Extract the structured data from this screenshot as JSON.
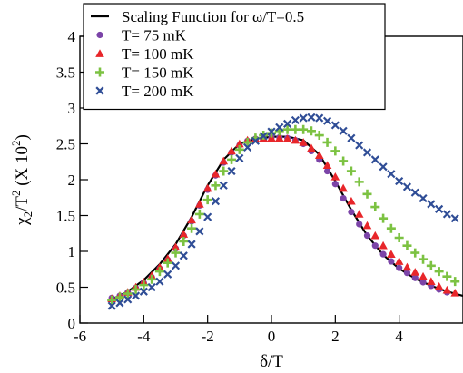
{
  "chart_data": {
    "type": "scatter",
    "title": "",
    "xlabel": "δ/T",
    "ylabel_main": "χ",
    "ylabel_sub": "2",
    "ylabel_mid": "/T",
    "ylabel_sup": "2",
    "ylabel_paren": " (X 10",
    "ylabel_paren_sup": "2",
    "ylabel_close": ")",
    "xlim": [
      -6,
      6
    ],
    "ylim": [
      0,
      4
    ],
    "xticks": [
      -6,
      -4,
      -2,
      0,
      2,
      4
    ],
    "yticks": [
      0,
      0.5,
      1,
      1.5,
      2,
      2.5,
      3,
      3.5,
      4
    ],
    "xtick_labels": [
      "-6",
      "-4",
      "-2",
      "0",
      "2",
      "4"
    ],
    "ytick_labels": [
      "0",
      "0.5",
      "1",
      "1.5",
      "2",
      "2.5",
      "3",
      "3.5",
      "4"
    ],
    "grid": false,
    "legend_position": "top-left",
    "line": {
      "name": "Scaling Function for ω/T=0.5",
      "color": "#000000",
      "x": [
        -5,
        -4.5,
        -4,
        -3.5,
        -3,
        -2.5,
        -2,
        -1.5,
        -1,
        -0.5,
        0,
        0.5,
        1,
        1.5,
        2,
        2.5,
        3,
        3.5,
        4,
        4.5,
        5,
        5.5,
        6
      ],
      "y": [
        0.33,
        0.44,
        0.6,
        0.82,
        1.1,
        1.48,
        1.92,
        2.28,
        2.5,
        2.57,
        2.6,
        2.6,
        2.55,
        2.35,
        1.98,
        1.58,
        1.22,
        0.95,
        0.76,
        0.62,
        0.52,
        0.44,
        0.38
      ]
    },
    "series": [
      {
        "name": "T= 75 mK",
        "marker": "circle",
        "color": "#7b44a8",
        "x": [
          -5,
          -4.75,
          -4.5,
          -4.25,
          -4,
          -3.75,
          -3.5,
          -3.25,
          -3,
          -2.75,
          -2.5,
          -2.25,
          -2,
          -1.75,
          -1.5,
          -1.25,
          -1,
          -0.75,
          -0.5,
          -0.25,
          0,
          0.25,
          0.5,
          0.75,
          1,
          1.25,
          1.5,
          1.75,
          2,
          2.25,
          2.5,
          2.75,
          3,
          3.25,
          3.5,
          3.75,
          4,
          4.25,
          4.5,
          4.75,
          5,
          5.25,
          5.5
        ],
        "y": [
          0.35,
          0.38,
          0.43,
          0.49,
          0.56,
          0.64,
          0.76,
          0.88,
          1.04,
          1.22,
          1.42,
          1.64,
          1.86,
          2.06,
          2.24,
          2.38,
          2.48,
          2.54,
          2.57,
          2.58,
          2.59,
          2.59,
          2.58,
          2.55,
          2.5,
          2.4,
          2.28,
          2.12,
          1.94,
          1.74,
          1.55,
          1.38,
          1.22,
          1.08,
          0.96,
          0.86,
          0.77,
          0.7,
          0.63,
          0.57,
          0.52,
          0.47,
          0.43
        ]
      },
      {
        "name": "T= 100 mK",
        "marker": "triangle",
        "color": "#e8262a",
        "x": [
          -5,
          -4.75,
          -4.5,
          -4.25,
          -4,
          -3.75,
          -3.5,
          -3.25,
          -3,
          -2.75,
          -2.5,
          -2.25,
          -2,
          -1.75,
          -1.5,
          -1.25,
          -1,
          -0.75,
          -0.5,
          -0.25,
          0,
          0.25,
          0.5,
          0.75,
          1,
          1.25,
          1.5,
          1.75,
          2,
          2.25,
          2.5,
          2.75,
          3,
          3.25,
          3.5,
          3.75,
          4,
          4.25,
          4.5,
          4.75,
          5,
          5.25,
          5.5,
          5.75
        ],
        "y": [
          0.34,
          0.38,
          0.43,
          0.5,
          0.57,
          0.66,
          0.78,
          0.9,
          1.06,
          1.24,
          1.44,
          1.66,
          1.88,
          2.08,
          2.26,
          2.4,
          2.5,
          2.55,
          2.57,
          2.58,
          2.58,
          2.58,
          2.57,
          2.55,
          2.52,
          2.44,
          2.34,
          2.2,
          2.04,
          1.88,
          1.7,
          1.52,
          1.36,
          1.22,
          1.08,
          0.96,
          0.86,
          0.78,
          0.71,
          0.65,
          0.58,
          0.51,
          0.46,
          0.42
        ]
      },
      {
        "name": "T= 150 mK",
        "marker": "plus",
        "color": "#7cc242",
        "x": [
          -5,
          -4.75,
          -4.5,
          -4.25,
          -4,
          -3.75,
          -3.5,
          -3.25,
          -3,
          -2.75,
          -2.5,
          -2.25,
          -2,
          -1.75,
          -1.5,
          -1.25,
          -1,
          -0.75,
          -0.5,
          -0.25,
          0,
          0.25,
          0.5,
          0.75,
          1,
          1.25,
          1.5,
          1.75,
          2,
          2.25,
          2.5,
          2.75,
          3,
          3.25,
          3.5,
          3.75,
          4,
          4.25,
          4.5,
          4.75,
          5,
          5.25,
          5.5,
          5.75
        ],
        "y": [
          0.32,
          0.36,
          0.41,
          0.47,
          0.53,
          0.61,
          0.72,
          0.84,
          0.98,
          1.14,
          1.32,
          1.52,
          1.72,
          1.92,
          2.12,
          2.28,
          2.42,
          2.52,
          2.58,
          2.62,
          2.65,
          2.68,
          2.7,
          2.7,
          2.7,
          2.68,
          2.62,
          2.52,
          2.4,
          2.26,
          2.12,
          1.97,
          1.8,
          1.62,
          1.46,
          1.32,
          1.19,
          1.08,
          0.98,
          0.89,
          0.8,
          0.72,
          0.65,
          0.58
        ]
      },
      {
        "name": "T= 200 mK",
        "marker": "cross",
        "color": "#2f4d96",
        "x": [
          -5,
          -4.75,
          -4.5,
          -4.25,
          -4,
          -3.75,
          -3.5,
          -3.25,
          -3,
          -2.75,
          -2.5,
          -2.25,
          -2,
          -1.75,
          -1.5,
          -1.25,
          -1,
          -0.75,
          -0.5,
          -0.25,
          0,
          0.25,
          0.5,
          0.75,
          1,
          1.25,
          1.5,
          1.75,
          2,
          2.25,
          2.5,
          2.75,
          3,
          3.25,
          3.5,
          3.75,
          4,
          4.25,
          4.5,
          4.75,
          5,
          5.25,
          5.5,
          5.75
        ],
        "y": [
          0.24,
          0.28,
          0.33,
          0.38,
          0.44,
          0.5,
          0.58,
          0.68,
          0.8,
          0.94,
          1.1,
          1.28,
          1.48,
          1.7,
          1.92,
          2.12,
          2.3,
          2.45,
          2.54,
          2.61,
          2.67,
          2.73,
          2.78,
          2.83,
          2.86,
          2.87,
          2.86,
          2.82,
          2.76,
          2.68,
          2.58,
          2.48,
          2.38,
          2.28,
          2.18,
          2.08,
          1.98,
          1.9,
          1.82,
          1.74,
          1.66,
          1.59,
          1.52,
          1.46
        ]
      }
    ]
  }
}
